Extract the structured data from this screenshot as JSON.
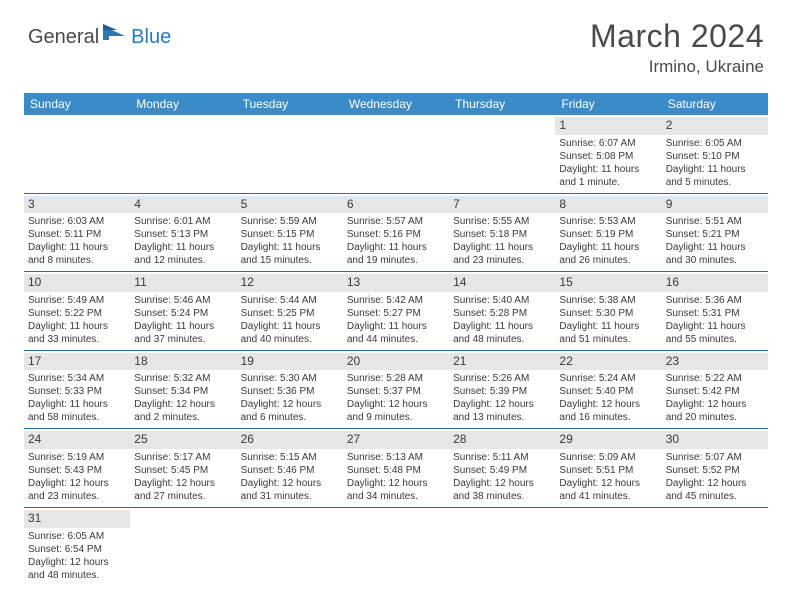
{
  "logo": {
    "text1": "General",
    "text2": "Blue"
  },
  "title": "March 2024",
  "location": "Irmino, Ukraine",
  "colors": {
    "header_bg": "#3b8bc8",
    "header_text": "#ffffff",
    "daynum_bg": "#e6e6e6",
    "cell_border": "#2b6aa3",
    "body_text": "#3a3a3a",
    "logo_gray": "#4a4a4a",
    "logo_blue": "#2779bd"
  },
  "day_headers": [
    "Sunday",
    "Monday",
    "Tuesday",
    "Wednesday",
    "Thursday",
    "Friday",
    "Saturday"
  ],
  "weeks": [
    [
      {
        "empty": true
      },
      {
        "empty": true
      },
      {
        "empty": true
      },
      {
        "empty": true
      },
      {
        "empty": true
      },
      {
        "day": "1",
        "sunrise": "Sunrise: 6:07 AM",
        "sunset": "Sunset: 5:08 PM",
        "daylight": "Daylight: 11 hours and 1 minute."
      },
      {
        "day": "2",
        "sunrise": "Sunrise: 6:05 AM",
        "sunset": "Sunset: 5:10 PM",
        "daylight": "Daylight: 11 hours and 5 minutes."
      }
    ],
    [
      {
        "day": "3",
        "sunrise": "Sunrise: 6:03 AM",
        "sunset": "Sunset: 5:11 PM",
        "daylight": "Daylight: 11 hours and 8 minutes."
      },
      {
        "day": "4",
        "sunrise": "Sunrise: 6:01 AM",
        "sunset": "Sunset: 5:13 PM",
        "daylight": "Daylight: 11 hours and 12 minutes."
      },
      {
        "day": "5",
        "sunrise": "Sunrise: 5:59 AM",
        "sunset": "Sunset: 5:15 PM",
        "daylight": "Daylight: 11 hours and 15 minutes."
      },
      {
        "day": "6",
        "sunrise": "Sunrise: 5:57 AM",
        "sunset": "Sunset: 5:16 PM",
        "daylight": "Daylight: 11 hours and 19 minutes."
      },
      {
        "day": "7",
        "sunrise": "Sunrise: 5:55 AM",
        "sunset": "Sunset: 5:18 PM",
        "daylight": "Daylight: 11 hours and 23 minutes."
      },
      {
        "day": "8",
        "sunrise": "Sunrise: 5:53 AM",
        "sunset": "Sunset: 5:19 PM",
        "daylight": "Daylight: 11 hours and 26 minutes."
      },
      {
        "day": "9",
        "sunrise": "Sunrise: 5:51 AM",
        "sunset": "Sunset: 5:21 PM",
        "daylight": "Daylight: 11 hours and 30 minutes."
      }
    ],
    [
      {
        "day": "10",
        "sunrise": "Sunrise: 5:49 AM",
        "sunset": "Sunset: 5:22 PM",
        "daylight": "Daylight: 11 hours and 33 minutes."
      },
      {
        "day": "11",
        "sunrise": "Sunrise: 5:46 AM",
        "sunset": "Sunset: 5:24 PM",
        "daylight": "Daylight: 11 hours and 37 minutes."
      },
      {
        "day": "12",
        "sunrise": "Sunrise: 5:44 AM",
        "sunset": "Sunset: 5:25 PM",
        "daylight": "Daylight: 11 hours and 40 minutes."
      },
      {
        "day": "13",
        "sunrise": "Sunrise: 5:42 AM",
        "sunset": "Sunset: 5:27 PM",
        "daylight": "Daylight: 11 hours and 44 minutes."
      },
      {
        "day": "14",
        "sunrise": "Sunrise: 5:40 AM",
        "sunset": "Sunset: 5:28 PM",
        "daylight": "Daylight: 11 hours and 48 minutes."
      },
      {
        "day": "15",
        "sunrise": "Sunrise: 5:38 AM",
        "sunset": "Sunset: 5:30 PM",
        "daylight": "Daylight: 11 hours and 51 minutes."
      },
      {
        "day": "16",
        "sunrise": "Sunrise: 5:36 AM",
        "sunset": "Sunset: 5:31 PM",
        "daylight": "Daylight: 11 hours and 55 minutes."
      }
    ],
    [
      {
        "day": "17",
        "sunrise": "Sunrise: 5:34 AM",
        "sunset": "Sunset: 5:33 PM",
        "daylight": "Daylight: 11 hours and 58 minutes."
      },
      {
        "day": "18",
        "sunrise": "Sunrise: 5:32 AM",
        "sunset": "Sunset: 5:34 PM",
        "daylight": "Daylight: 12 hours and 2 minutes."
      },
      {
        "day": "19",
        "sunrise": "Sunrise: 5:30 AM",
        "sunset": "Sunset: 5:36 PM",
        "daylight": "Daylight: 12 hours and 6 minutes."
      },
      {
        "day": "20",
        "sunrise": "Sunrise: 5:28 AM",
        "sunset": "Sunset: 5:37 PM",
        "daylight": "Daylight: 12 hours and 9 minutes."
      },
      {
        "day": "21",
        "sunrise": "Sunrise: 5:26 AM",
        "sunset": "Sunset: 5:39 PM",
        "daylight": "Daylight: 12 hours and 13 minutes."
      },
      {
        "day": "22",
        "sunrise": "Sunrise: 5:24 AM",
        "sunset": "Sunset: 5:40 PM",
        "daylight": "Daylight: 12 hours and 16 minutes."
      },
      {
        "day": "23",
        "sunrise": "Sunrise: 5:22 AM",
        "sunset": "Sunset: 5:42 PM",
        "daylight": "Daylight: 12 hours and 20 minutes."
      }
    ],
    [
      {
        "day": "24",
        "sunrise": "Sunrise: 5:19 AM",
        "sunset": "Sunset: 5:43 PM",
        "daylight": "Daylight: 12 hours and 23 minutes."
      },
      {
        "day": "25",
        "sunrise": "Sunrise: 5:17 AM",
        "sunset": "Sunset: 5:45 PM",
        "daylight": "Daylight: 12 hours and 27 minutes."
      },
      {
        "day": "26",
        "sunrise": "Sunrise: 5:15 AM",
        "sunset": "Sunset: 5:46 PM",
        "daylight": "Daylight: 12 hours and 31 minutes."
      },
      {
        "day": "27",
        "sunrise": "Sunrise: 5:13 AM",
        "sunset": "Sunset: 5:48 PM",
        "daylight": "Daylight: 12 hours and 34 minutes."
      },
      {
        "day": "28",
        "sunrise": "Sunrise: 5:11 AM",
        "sunset": "Sunset: 5:49 PM",
        "daylight": "Daylight: 12 hours and 38 minutes."
      },
      {
        "day": "29",
        "sunrise": "Sunrise: 5:09 AM",
        "sunset": "Sunset: 5:51 PM",
        "daylight": "Daylight: 12 hours and 41 minutes."
      },
      {
        "day": "30",
        "sunrise": "Sunrise: 5:07 AM",
        "sunset": "Sunset: 5:52 PM",
        "daylight": "Daylight: 12 hours and 45 minutes."
      }
    ],
    [
      {
        "day": "31",
        "sunrise": "Sunrise: 6:05 AM",
        "sunset": "Sunset: 6:54 PM",
        "daylight": "Daylight: 12 hours and 48 minutes."
      },
      {
        "empty": true
      },
      {
        "empty": true
      },
      {
        "empty": true
      },
      {
        "empty": true
      },
      {
        "empty": true
      },
      {
        "empty": true
      }
    ]
  ]
}
